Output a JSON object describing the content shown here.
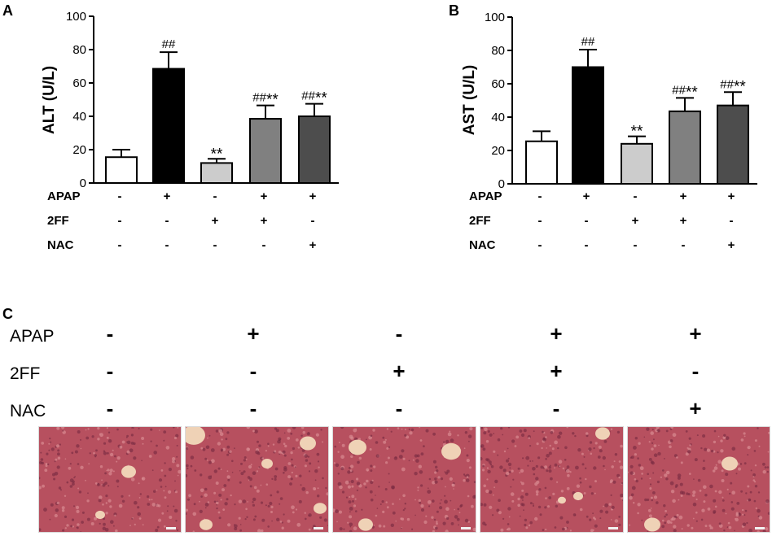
{
  "panels": [
    {
      "letter": "A",
      "chart_data": {
        "type": "bar",
        "ylabel": "ALT (U/L)",
        "ylim": [
          0,
          100
        ],
        "yticks": [
          "0",
          "20",
          "40",
          "60",
          "80",
          "100"
        ],
        "values": [
          15.5,
          68.5,
          12,
          38.5,
          40
        ],
        "errors": [
          4.5,
          10,
          2.5,
          8,
          7.5
        ],
        "annotations": [
          "",
          "##",
          "**",
          "##**",
          "##**"
        ],
        "fills": [
          "#ffffff",
          "#000000",
          "#cccccc",
          "#808080",
          "#4d4d4d"
        ]
      },
      "treatments": [
        {
          "name": "APAP",
          "signs": [
            "-",
            "+",
            "-",
            "+",
            "+"
          ]
        },
        {
          "name": "2FF",
          "signs": [
            "-",
            "-",
            "+",
            "+",
            "-"
          ]
        },
        {
          "name": "NAC",
          "signs": [
            "-",
            "-",
            "-",
            "-",
            "+"
          ]
        }
      ]
    },
    {
      "letter": "B",
      "chart_data": {
        "type": "bar",
        "ylabel": "AST (U/L)",
        "ylim": [
          0,
          100
        ],
        "yticks": [
          "0",
          "20",
          "40",
          "60",
          "80",
          "100"
        ],
        "values": [
          25.5,
          70,
          24,
          43.5,
          47
        ],
        "errors": [
          6,
          10.5,
          4.5,
          8,
          8
        ],
        "annotations": [
          "",
          "##",
          "**",
          "##**",
          "##**"
        ],
        "fills": [
          "#ffffff",
          "#000000",
          "#cccccc",
          "#808080",
          "#4d4d4d"
        ]
      },
      "treatments": [
        {
          "name": "APAP",
          "signs": [
            "-",
            "+",
            "-",
            "+",
            "+"
          ]
        },
        {
          "name": "2FF",
          "signs": [
            "-",
            "-",
            "+",
            "+",
            "-"
          ]
        },
        {
          "name": "NAC",
          "signs": [
            "-",
            "-",
            "-",
            "-",
            "+"
          ]
        }
      ]
    }
  ],
  "panelC": {
    "letter": "C",
    "treatments": [
      {
        "name": "APAP",
        "signs": [
          "-",
          "+",
          "-",
          "+",
          "+"
        ]
      },
      {
        "name": "2FF",
        "signs": [
          "-",
          "-",
          "+",
          "+",
          "-"
        ]
      },
      {
        "name": "NAC",
        "signs": [
          "-",
          "-",
          "-",
          "-",
          "+"
        ]
      }
    ],
    "images": [
      {
        "name": "histology-image-control"
      },
      {
        "name": "histology-image-apap"
      },
      {
        "name": "histology-image-2ff"
      },
      {
        "name": "histology-image-apap-2ff"
      },
      {
        "name": "histology-image-apap-nac"
      }
    ],
    "colors": {
      "tissue": "#b7505f",
      "tissue_light": "#d98a92",
      "vessel": "#efd2b6"
    }
  }
}
